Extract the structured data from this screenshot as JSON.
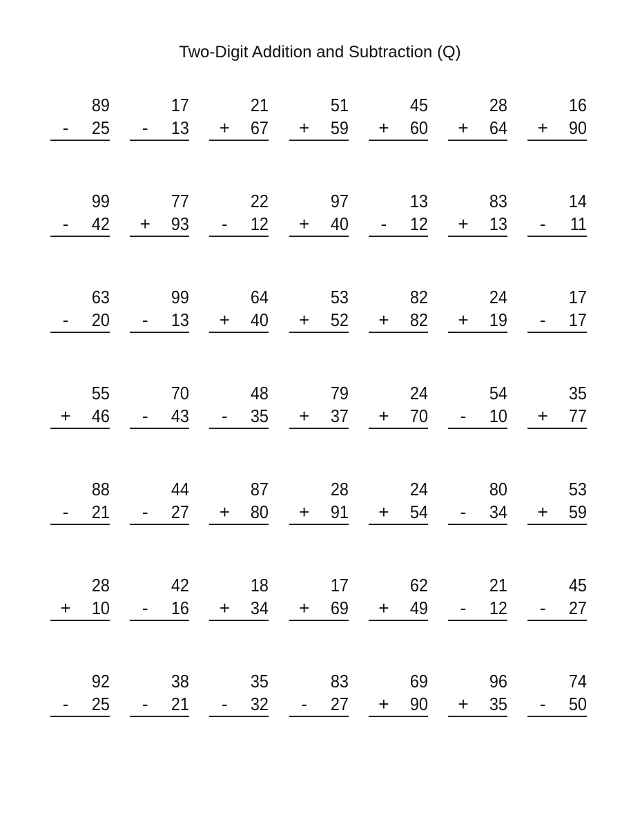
{
  "title": "Two-Digit Addition and Subtraction (Q)",
  "problems": [
    [
      {
        "top": "89",
        "op": "-",
        "bottom": "25"
      },
      {
        "top": "17",
        "op": "-",
        "bottom": "13"
      },
      {
        "top": "21",
        "op": "+",
        "bottom": "67"
      },
      {
        "top": "51",
        "op": "+",
        "bottom": "59"
      },
      {
        "top": "45",
        "op": "+",
        "bottom": "60"
      },
      {
        "top": "28",
        "op": "+",
        "bottom": "64"
      },
      {
        "top": "16",
        "op": "+",
        "bottom": "90"
      }
    ],
    [
      {
        "top": "99",
        "op": "-",
        "bottom": "42"
      },
      {
        "top": "77",
        "op": "+",
        "bottom": "93"
      },
      {
        "top": "22",
        "op": "-",
        "bottom": "12"
      },
      {
        "top": "97",
        "op": "+",
        "bottom": "40"
      },
      {
        "top": "13",
        "op": "-",
        "bottom": "12"
      },
      {
        "top": "83",
        "op": "+",
        "bottom": "13"
      },
      {
        "top": "14",
        "op": "-",
        "bottom": "11"
      }
    ],
    [
      {
        "top": "63",
        "op": "-",
        "bottom": "20"
      },
      {
        "top": "99",
        "op": "-",
        "bottom": "13"
      },
      {
        "top": "64",
        "op": "+",
        "bottom": "40"
      },
      {
        "top": "53",
        "op": "+",
        "bottom": "52"
      },
      {
        "top": "82",
        "op": "+",
        "bottom": "82"
      },
      {
        "top": "24",
        "op": "+",
        "bottom": "19"
      },
      {
        "top": "17",
        "op": "-",
        "bottom": "17"
      }
    ],
    [
      {
        "top": "55",
        "op": "+",
        "bottom": "46"
      },
      {
        "top": "70",
        "op": "-",
        "bottom": "43"
      },
      {
        "top": "48",
        "op": "-",
        "bottom": "35"
      },
      {
        "top": "79",
        "op": "+",
        "bottom": "37"
      },
      {
        "top": "24",
        "op": "+",
        "bottom": "70"
      },
      {
        "top": "54",
        "op": "-",
        "bottom": "10"
      },
      {
        "top": "35",
        "op": "+",
        "bottom": "77"
      }
    ],
    [
      {
        "top": "88",
        "op": "-",
        "bottom": "21"
      },
      {
        "top": "44",
        "op": "-",
        "bottom": "27"
      },
      {
        "top": "87",
        "op": "+",
        "bottom": "80"
      },
      {
        "top": "28",
        "op": "+",
        "bottom": "91"
      },
      {
        "top": "24",
        "op": "+",
        "bottom": "54"
      },
      {
        "top": "80",
        "op": "-",
        "bottom": "34"
      },
      {
        "top": "53",
        "op": "+",
        "bottom": "59"
      }
    ],
    [
      {
        "top": "28",
        "op": "+",
        "bottom": "10"
      },
      {
        "top": "42",
        "op": "-",
        "bottom": "16"
      },
      {
        "top": "18",
        "op": "+",
        "bottom": "34"
      },
      {
        "top": "17",
        "op": "+",
        "bottom": "69"
      },
      {
        "top": "62",
        "op": "+",
        "bottom": "49"
      },
      {
        "top": "21",
        "op": "-",
        "bottom": "12"
      },
      {
        "top": "45",
        "op": "-",
        "bottom": "27"
      }
    ],
    [
      {
        "top": "92",
        "op": "-",
        "bottom": "25"
      },
      {
        "top": "38",
        "op": "-",
        "bottom": "21"
      },
      {
        "top": "35",
        "op": "-",
        "bottom": "32"
      },
      {
        "top": "83",
        "op": "-",
        "bottom": "27"
      },
      {
        "top": "69",
        "op": "+",
        "bottom": "90"
      },
      {
        "top": "96",
        "op": "+",
        "bottom": "35"
      },
      {
        "top": "74",
        "op": "-",
        "bottom": "50"
      }
    ]
  ]
}
